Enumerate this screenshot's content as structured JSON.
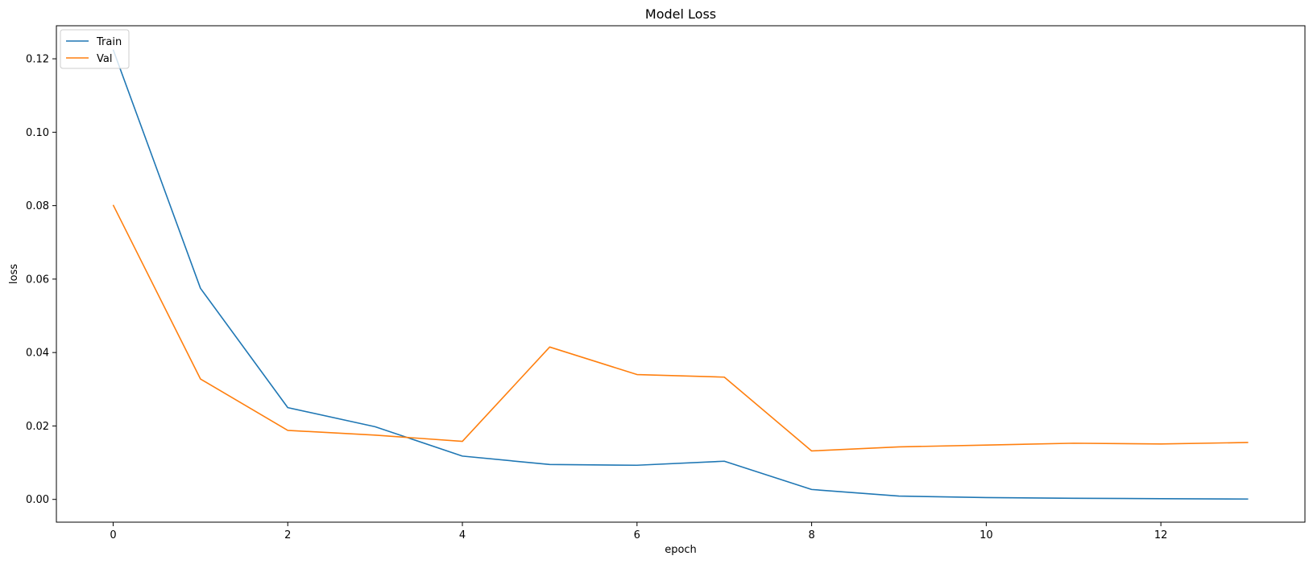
{
  "chart_data": {
    "type": "line",
    "title": "Model Loss",
    "xlabel": "epoch",
    "ylabel": "loss",
    "xlim": [
      -0.65,
      13.65
    ],
    "ylim": [
      -0.0062,
      0.129
    ],
    "xticks": [
      0,
      2,
      4,
      6,
      8,
      10,
      12
    ],
    "xtick_labels": [
      "0",
      "2",
      "4",
      "6",
      "8",
      "10",
      "12"
    ],
    "yticks": [
      0.0,
      0.02,
      0.04,
      0.06,
      0.08,
      0.1,
      0.12
    ],
    "ytick_labels": [
      "0.00",
      "0.02",
      "0.04",
      "0.06",
      "0.08",
      "0.10",
      "0.12"
    ],
    "grid": false,
    "legend": "top-left",
    "x": [
      0,
      1,
      2,
      3,
      4,
      5,
      6,
      7,
      8,
      9,
      10,
      11,
      12,
      13
    ],
    "series": [
      {
        "name": "Train",
        "color": "#1f77b4",
        "values": [
          0.1225,
          0.0575,
          0.025,
          0.0198,
          0.0118,
          0.0095,
          0.0093,
          0.0104,
          0.0027,
          0.0009,
          0.0005,
          0.0003,
          0.0002,
          0.0001
        ]
      },
      {
        "name": "Val",
        "color": "#ff7f0e",
        "values": [
          0.0802,
          0.0328,
          0.0188,
          0.0175,
          0.0158,
          0.0415,
          0.034,
          0.0333,
          0.0132,
          0.0143,
          0.0148,
          0.0153,
          0.0151,
          0.0155
        ]
      }
    ]
  }
}
